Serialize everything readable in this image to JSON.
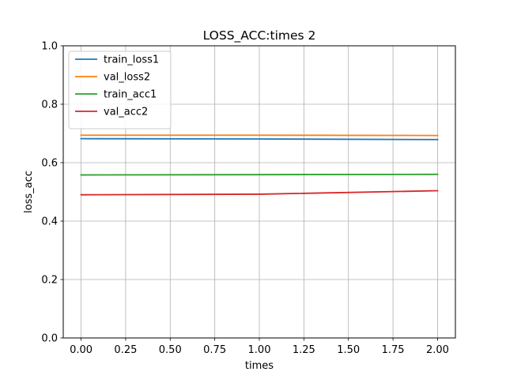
{
  "chart_data": {
    "type": "line",
    "title": "LOSS_ACC:times 2",
    "xlabel": "times",
    "ylabel": "loss_acc",
    "xlim": [
      -0.1,
      2.1
    ],
    "ylim": [
      0.0,
      1.0
    ],
    "x_ticks": [
      0.0,
      0.25,
      0.5,
      0.75,
      1.0,
      1.25,
      1.5,
      1.75,
      2.0
    ],
    "x_tick_labels": [
      "0.00",
      "0.25",
      "0.50",
      "0.75",
      "1.00",
      "1.25",
      "1.50",
      "1.75",
      "2.00"
    ],
    "y_ticks": [
      0.0,
      0.2,
      0.4,
      0.6,
      0.8,
      1.0
    ],
    "y_tick_labels": [
      "0.0",
      "0.2",
      "0.4",
      "0.6",
      "0.8",
      "1.0"
    ],
    "grid": true,
    "legend_position": "top-left",
    "x": [
      0,
      1,
      2
    ],
    "series": [
      {
        "name": "train_loss1",
        "color": "#1f77b4",
        "values": [
          0.682,
          0.681,
          0.679
        ]
      },
      {
        "name": "val_loss2",
        "color": "#ff7f0e",
        "values": [
          0.694,
          0.694,
          0.693
        ]
      },
      {
        "name": "train_acc1",
        "color": "#2ca02c",
        "values": [
          0.558,
          0.559,
          0.56
        ]
      },
      {
        "name": "val_acc2",
        "color": "#d62728",
        "values": [
          0.49,
          0.492,
          0.504
        ]
      }
    ]
  }
}
